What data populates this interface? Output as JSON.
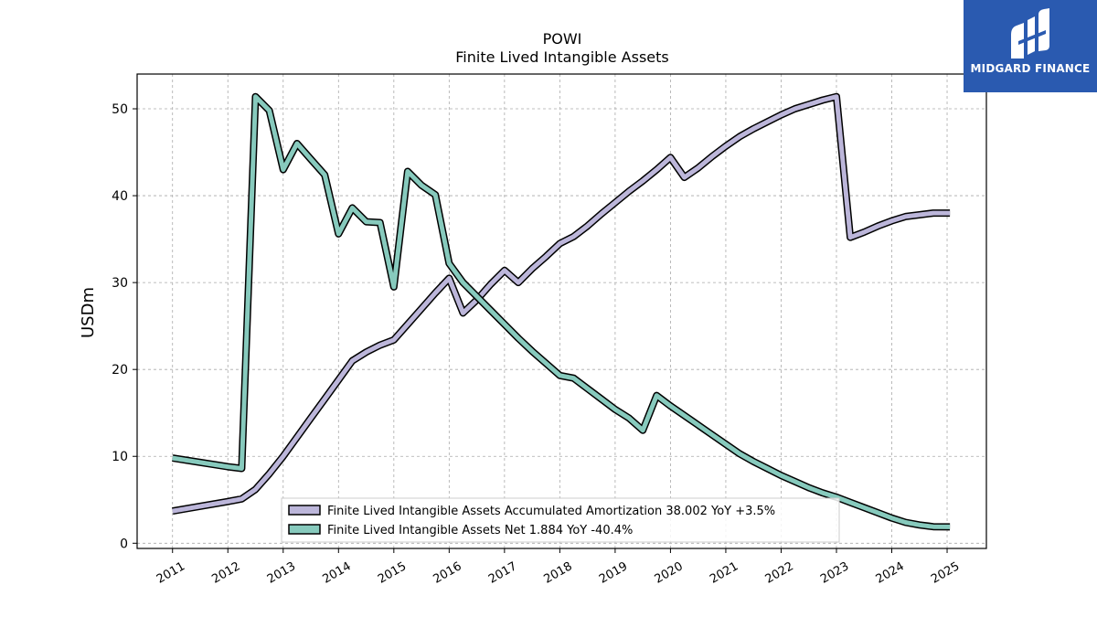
{
  "brand": {
    "name": "MIDGARD FINANCE",
    "background": "#2a5ab0"
  },
  "chart_data": {
    "type": "line",
    "title": "POWI",
    "subtitle": "Finite Lived Intangible Assets",
    "ylabel": "USDm",
    "xlabel": "",
    "xlim": [
      2010.36,
      2025.71
    ],
    "ylim": [
      -0.6,
      54
    ],
    "yticks": [
      0,
      10,
      20,
      30,
      40,
      50
    ],
    "xticks": [
      "2011",
      "2012",
      "2013",
      "2014",
      "2015",
      "2016",
      "2017",
      "2018",
      "2019",
      "2020",
      "2021",
      "2022",
      "2023",
      "2024",
      "2025"
    ],
    "grid": true,
    "legend_position": "bottom-center",
    "series": [
      {
        "name": "Finite Lived Intangible Assets Accumulated Amortization",
        "legend_label": "Finite Lived Intangible Assets Accumulated Amortization  38.002 YoY +3.5%",
        "color": "#bcb6da",
        "points": [
          [
            2011.0,
            3.7
          ],
          [
            2012.0,
            4.8
          ],
          [
            2012.25,
            5.1
          ],
          [
            2012.5,
            6.2
          ],
          [
            2012.75,
            8.0
          ],
          [
            2013.0,
            10.0
          ],
          [
            2013.25,
            12.2
          ],
          [
            2013.5,
            14.4
          ],
          [
            2013.75,
            16.6
          ],
          [
            2014.0,
            18.8
          ],
          [
            2014.25,
            21.0
          ],
          [
            2014.5,
            22.0
          ],
          [
            2014.75,
            22.8
          ],
          [
            2015.0,
            23.4
          ],
          [
            2015.25,
            25.2
          ],
          [
            2015.5,
            27.0
          ],
          [
            2015.75,
            28.8
          ],
          [
            2016.0,
            30.5
          ],
          [
            2016.25,
            26.5
          ],
          [
            2016.5,
            28.0
          ],
          [
            2016.75,
            29.8
          ],
          [
            2017.0,
            31.4
          ],
          [
            2017.25,
            30.0
          ],
          [
            2017.5,
            31.6
          ],
          [
            2017.75,
            33.0
          ],
          [
            2018.0,
            34.5
          ],
          [
            2018.25,
            35.3
          ],
          [
            2018.5,
            36.5
          ],
          [
            2018.75,
            37.9
          ],
          [
            2019.0,
            39.2
          ],
          [
            2019.25,
            40.5
          ],
          [
            2019.5,
            41.7
          ],
          [
            2019.75,
            43.0
          ],
          [
            2020.0,
            44.4
          ],
          [
            2020.25,
            42.1
          ],
          [
            2020.5,
            43.2
          ],
          [
            2020.75,
            44.5
          ],
          [
            2021.0,
            45.7
          ],
          [
            2021.25,
            46.8
          ],
          [
            2021.5,
            47.7
          ],
          [
            2021.75,
            48.5
          ],
          [
            2022.0,
            49.3
          ],
          [
            2022.25,
            50.0
          ],
          [
            2022.5,
            50.5
          ],
          [
            2022.75,
            51.0
          ],
          [
            2023.0,
            51.4
          ],
          [
            2023.25,
            35.2
          ],
          [
            2023.5,
            35.8
          ],
          [
            2023.75,
            36.5
          ],
          [
            2024.0,
            37.1
          ],
          [
            2024.25,
            37.6
          ],
          [
            2024.5,
            37.8
          ],
          [
            2024.75,
            38.0
          ],
          [
            2025.05,
            38.0
          ]
        ]
      },
      {
        "name": "Finite Lived Intangible Assets Net",
        "legend_label": "Finite Lived Intangible Assets Net  1.884 YoY -40.4%",
        "color": "#87cabd",
        "points": [
          [
            2011.0,
            9.8
          ],
          [
            2012.0,
            8.8
          ],
          [
            2012.25,
            8.6
          ],
          [
            2012.5,
            51.4
          ],
          [
            2012.75,
            49.8
          ],
          [
            2013.0,
            43.0
          ],
          [
            2013.25,
            46.0
          ],
          [
            2013.5,
            44.2
          ],
          [
            2013.75,
            42.4
          ],
          [
            2014.0,
            35.6
          ],
          [
            2014.25,
            38.6
          ],
          [
            2014.5,
            37.0
          ],
          [
            2014.75,
            36.9
          ],
          [
            2015.0,
            29.5
          ],
          [
            2015.25,
            42.8
          ],
          [
            2015.5,
            41.2
          ],
          [
            2015.75,
            40.1
          ],
          [
            2016.0,
            32.2
          ],
          [
            2016.25,
            30.0
          ],
          [
            2016.5,
            28.4
          ],
          [
            2016.75,
            26.8
          ],
          [
            2017.0,
            25.2
          ],
          [
            2017.25,
            23.6
          ],
          [
            2017.5,
            22.1
          ],
          [
            2017.75,
            20.7
          ],
          [
            2018.0,
            19.3
          ],
          [
            2018.25,
            19.0
          ],
          [
            2018.5,
            17.8
          ],
          [
            2018.75,
            16.6
          ],
          [
            2019.0,
            15.4
          ],
          [
            2019.25,
            14.4
          ],
          [
            2019.5,
            13.0
          ],
          [
            2019.75,
            17.0
          ],
          [
            2020.0,
            15.8
          ],
          [
            2020.25,
            14.7
          ],
          [
            2020.5,
            13.6
          ],
          [
            2020.75,
            12.5
          ],
          [
            2021.0,
            11.4
          ],
          [
            2021.25,
            10.3
          ],
          [
            2021.5,
            9.4
          ],
          [
            2021.75,
            8.6
          ],
          [
            2022.0,
            7.8
          ],
          [
            2022.25,
            7.1
          ],
          [
            2022.5,
            6.4
          ],
          [
            2022.75,
            5.8
          ],
          [
            2023.0,
            5.3
          ],
          [
            2023.25,
            4.7
          ],
          [
            2023.5,
            4.1
          ],
          [
            2023.75,
            3.5
          ],
          [
            2024.0,
            2.9
          ],
          [
            2024.25,
            2.4
          ],
          [
            2024.5,
            2.1
          ],
          [
            2024.75,
            1.9
          ],
          [
            2025.05,
            1.884
          ]
        ]
      }
    ]
  }
}
